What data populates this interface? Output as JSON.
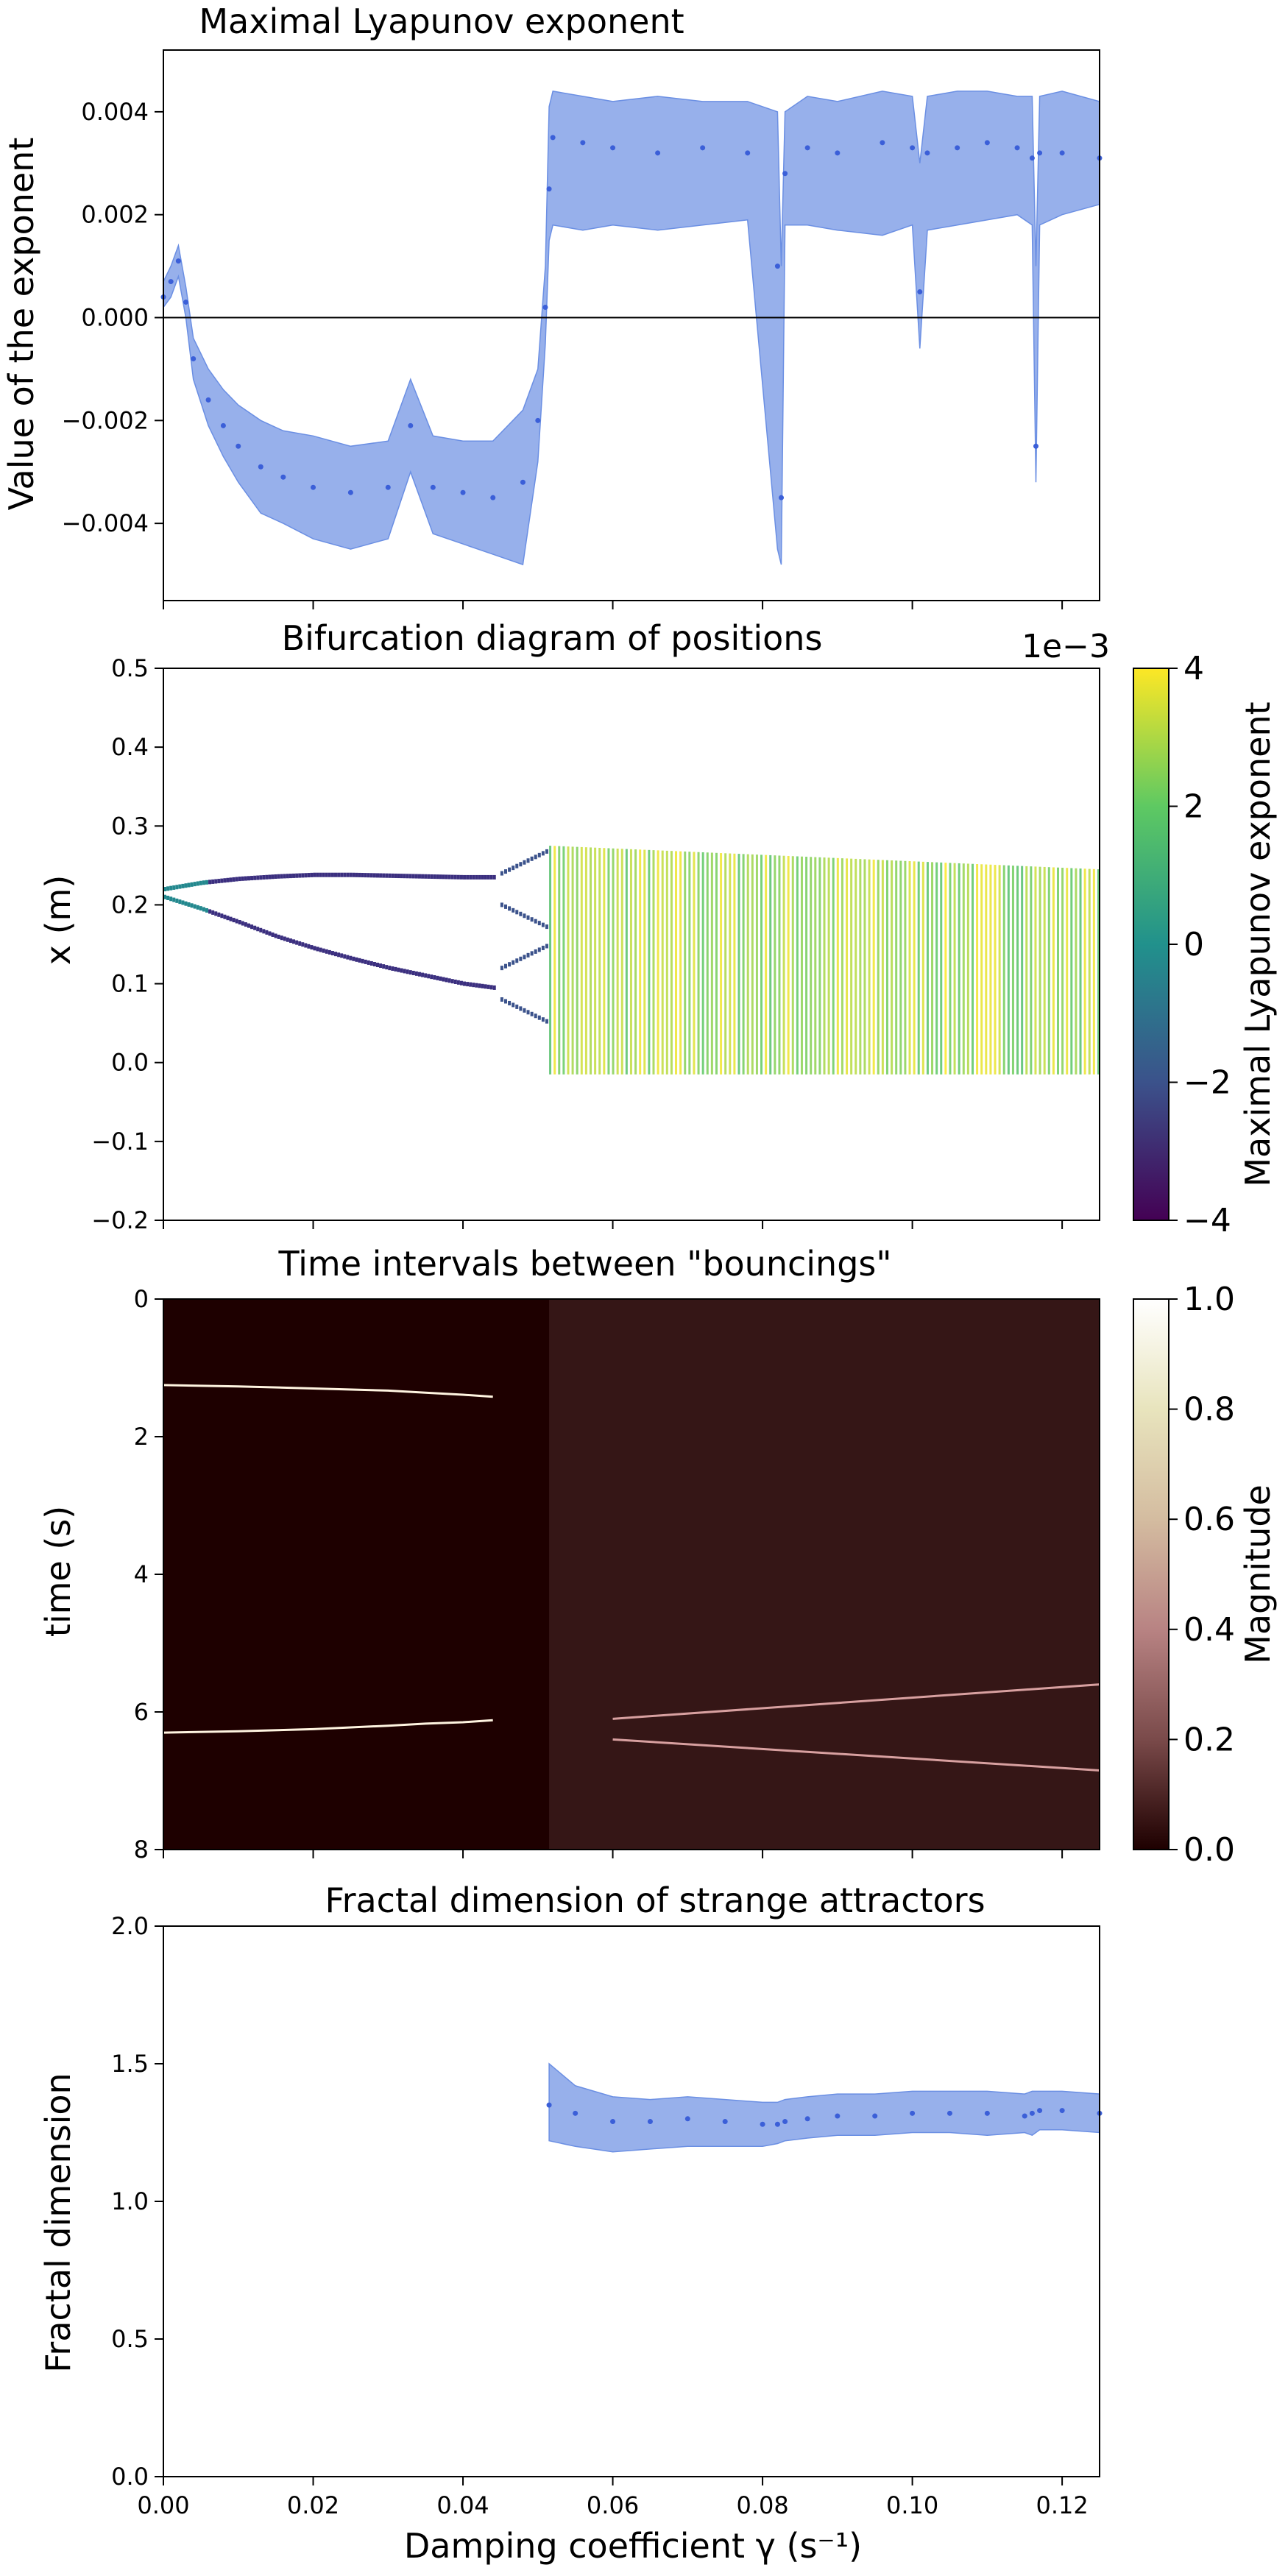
{
  "figure": {
    "xlabel": "Damping coefficient γ (s⁻¹)",
    "x_ticks": [
      "0.00",
      "0.02",
      "0.04",
      "0.06",
      "0.08",
      "0.10",
      "0.12"
    ]
  },
  "chart_data": [
    {
      "type": "line",
      "title": "Maximal Lyapunov exponent",
      "ylabel": "Value of the exponent",
      "xlim": [
        0.0,
        0.125
      ],
      "ylim": [
        -0.0055,
        0.0052
      ],
      "y_ticks": [
        "0.004",
        "0.002",
        "0.000",
        "−0.002",
        "−0.004"
      ],
      "y_tick_values": [
        0.004,
        0.002,
        0.0,
        -0.002,
        -0.004
      ],
      "reference_line": 0.0,
      "band_color": "#6b8fe3",
      "point_color": "#3b5fd8",
      "series": [
        {
          "x": [
            0.0,
            0.001,
            0.002,
            0.003,
            0.004,
            0.006,
            0.008,
            0.01,
            0.013,
            0.016,
            0.02,
            0.025,
            0.03,
            0.033,
            0.036,
            0.04,
            0.044,
            0.048,
            0.05,
            0.051,
            0.0515,
            0.052,
            0.056,
            0.06,
            0.066,
            0.072,
            0.078,
            0.082,
            0.0825,
            0.083,
            0.086,
            0.09,
            0.096,
            0.1,
            0.101,
            0.102,
            0.106,
            0.11,
            0.114,
            0.116,
            0.1165,
            0.117,
            0.12,
            0.125
          ],
          "y": [
            0.0004,
            0.0007,
            0.0011,
            0.0003,
            -0.0008,
            -0.0016,
            -0.0021,
            -0.0025,
            -0.0029,
            -0.0031,
            -0.0033,
            -0.0034,
            -0.0033,
            -0.0021,
            -0.0033,
            -0.0034,
            -0.0035,
            -0.0032,
            -0.002,
            0.0002,
            0.0025,
            0.0035,
            0.0034,
            0.0033,
            0.0032,
            0.0033,
            0.0032,
            0.001,
            -0.0035,
            0.0028,
            0.0033,
            0.0032,
            0.0034,
            0.0033,
            0.0005,
            0.0032,
            0.0033,
            0.0034,
            0.0033,
            0.0031,
            -0.0025,
            0.0032,
            0.0032,
            0.0031
          ],
          "lower": [
            0.0002,
            0.0004,
            0.0008,
            0.0,
            -0.0012,
            -0.0021,
            -0.0027,
            -0.0032,
            -0.0038,
            -0.004,
            -0.0043,
            -0.0045,
            -0.0043,
            -0.003,
            -0.0042,
            -0.0044,
            -0.0046,
            -0.0048,
            -0.0028,
            -0.0005,
            0.0015,
            0.0018,
            0.0017,
            0.0018,
            0.0017,
            0.0018,
            0.0019,
            -0.0045,
            -0.0048,
            0.0018,
            0.0018,
            0.0017,
            0.0016,
            0.0018,
            -0.0006,
            0.0017,
            0.0018,
            0.0019,
            0.002,
            0.0018,
            -0.0032,
            0.0018,
            0.002,
            0.0022
          ],
          "upper": [
            0.0007,
            0.001,
            0.0014,
            0.0006,
            -0.0004,
            -0.001,
            -0.0014,
            -0.0017,
            -0.002,
            -0.0022,
            -0.0023,
            -0.0025,
            -0.0024,
            -0.0012,
            -0.0023,
            -0.0024,
            -0.0024,
            -0.0018,
            -0.001,
            0.001,
            0.0041,
            0.0044,
            0.0043,
            0.0042,
            0.0043,
            0.0042,
            0.0042,
            0.004,
            0.001,
            0.004,
            0.0043,
            0.0042,
            0.0044,
            0.0043,
            0.003,
            0.0043,
            0.0044,
            0.0044,
            0.0043,
            0.0043,
            0.001,
            0.0043,
            0.0044,
            0.0042
          ]
        }
      ]
    },
    {
      "type": "scatter",
      "title": "Bifurcation diagram of positions",
      "ylabel": "x (m)",
      "xlim": [
        0.0,
        0.125
      ],
      "ylim": [
        -0.2,
        0.5
      ],
      "y_ticks": [
        "0.5",
        "0.4",
        "0.3",
        "0.2",
        "0.1",
        "0.0",
        "−0.1",
        "−0.2"
      ],
      "y_tick_values": [
        0.5,
        0.4,
        0.3,
        0.2,
        0.1,
        0.0,
        -0.1,
        -0.2
      ],
      "colorbar": {
        "label": "Maximal Lyapunov exponent",
        "offset_label": "1e−3",
        "range": [
          -4,
          4
        ],
        "ticks": [
          "4",
          "2",
          "0",
          "−2",
          "−4"
        ],
        "tick_values": [
          4,
          2,
          0,
          -2,
          -4
        ],
        "colormap": "viridis"
      },
      "branches": [
        {
          "name": "upper branch",
          "x": [
            0.0,
            0.005,
            0.01,
            0.015,
            0.02,
            0.025,
            0.03,
            0.035,
            0.04,
            0.044
          ],
          "y": [
            0.22,
            0.228,
            0.233,
            0.236,
            0.238,
            0.238,
            0.237,
            0.236,
            0.235,
            0.235
          ]
        },
        {
          "name": "lower branch",
          "x": [
            0.0,
            0.005,
            0.01,
            0.015,
            0.02,
            0.025,
            0.03,
            0.035,
            0.04,
            0.044
          ],
          "y": [
            0.21,
            0.195,
            0.178,
            0.16,
            0.145,
            0.132,
            0.12,
            0.11,
            0.1,
            0.095
          ]
        }
      ],
      "period_doubling": {
        "x_range": [
          0.045,
          0.0515
        ],
        "values": [
          0.27,
          0.17,
          0.15,
          0.05
        ]
      },
      "chaotic_region": {
        "x_range": [
          0.0515,
          0.125
        ],
        "y_min": -0.015,
        "y_max_start": 0.275,
        "y_max_end": 0.245
      }
    },
    {
      "type": "heatmap",
      "title": "Time intervals between \"bouncings\"",
      "ylabel": "time (s)",
      "xlim": [
        0.0,
        0.125
      ],
      "ylim": [
        8,
        0
      ],
      "y_ticks": [
        "0",
        "2",
        "4",
        "6",
        "8"
      ],
      "y_tick_values": [
        0,
        2,
        4,
        6,
        8
      ],
      "colorbar": {
        "label": "Magnitude",
        "range": [
          0.0,
          1.0
        ],
        "ticks": [
          "1.0",
          "0.8",
          "0.6",
          "0.4",
          "0.2",
          "0.0"
        ],
        "tick_values": [
          1.0,
          0.8,
          0.6,
          0.4,
          0.2,
          0.0
        ],
        "colormap": "pink"
      },
      "ridges": [
        {
          "name": "short interval",
          "x": [
            0.0,
            0.01,
            0.02,
            0.03,
            0.035,
            0.04,
            0.044
          ],
          "y": [
            1.25,
            1.27,
            1.3,
            1.33,
            1.36,
            1.39,
            1.42
          ]
        },
        {
          "name": "long interval",
          "x": [
            0.0,
            0.01,
            0.02,
            0.03,
            0.035,
            0.04,
            0.044
          ],
          "y": [
            6.3,
            6.28,
            6.25,
            6.2,
            6.17,
            6.15,
            6.12
          ]
        }
      ]
    },
    {
      "type": "line",
      "title": "Fractal dimension of strange attractors",
      "ylabel": "Fractal dimension",
      "xlim": [
        0.0,
        0.125
      ],
      "ylim": [
        0.0,
        2.0
      ],
      "y_ticks": [
        "2.0",
        "1.5",
        "1.0",
        "0.5",
        "0.0"
      ],
      "y_tick_values": [
        2.0,
        1.5,
        1.0,
        0.5,
        0.0
      ],
      "band_color": "#6b8fe3",
      "point_color": "#3b5fd8",
      "series": [
        {
          "x": [
            0.0515,
            0.055,
            0.06,
            0.065,
            0.07,
            0.075,
            0.08,
            0.082,
            0.083,
            0.086,
            0.09,
            0.095,
            0.1,
            0.105,
            0.11,
            0.115,
            0.116,
            0.117,
            0.12,
            0.125
          ],
          "y": [
            1.35,
            1.32,
            1.29,
            1.29,
            1.3,
            1.29,
            1.28,
            1.28,
            1.29,
            1.3,
            1.31,
            1.31,
            1.32,
            1.32,
            1.32,
            1.31,
            1.32,
            1.33,
            1.33,
            1.32
          ],
          "lower": [
            1.22,
            1.2,
            1.18,
            1.19,
            1.2,
            1.2,
            1.2,
            1.21,
            1.22,
            1.23,
            1.24,
            1.24,
            1.25,
            1.25,
            1.24,
            1.25,
            1.24,
            1.26,
            1.26,
            1.25
          ],
          "upper": [
            1.5,
            1.42,
            1.38,
            1.37,
            1.38,
            1.37,
            1.36,
            1.36,
            1.37,
            1.38,
            1.39,
            1.39,
            1.4,
            1.4,
            1.4,
            1.39,
            1.4,
            1.4,
            1.4,
            1.39
          ]
        }
      ]
    }
  ]
}
